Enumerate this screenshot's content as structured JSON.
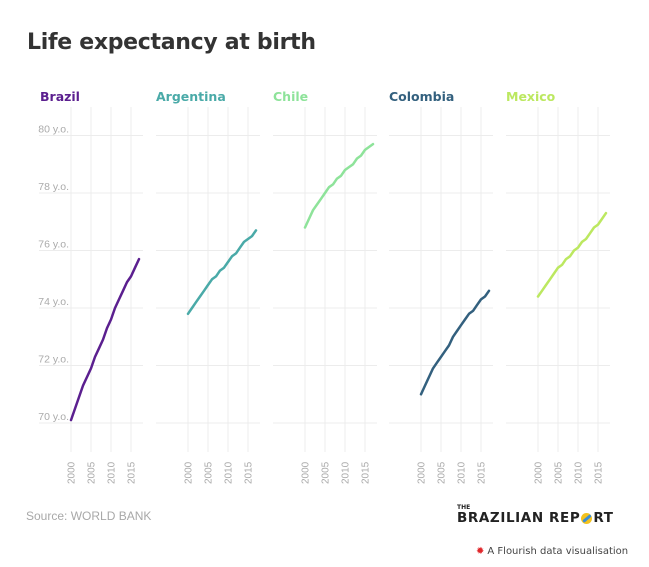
{
  "title": "Life expectancy at birth",
  "source": "Source: WORLD BANK",
  "brand": {
    "the": "THE",
    "name_before": "BRAZILIAN REP",
    "name_after": "RT",
    "logo_icon": "globe-icon"
  },
  "flourish": {
    "icon": "flourish-burst-icon",
    "text": "A Flourish data visualisation"
  },
  "chart_data": {
    "type": "line",
    "layout": "small-multiples",
    "title": "Life expectancy at birth",
    "xlabel": "",
    "ylabel": "",
    "x": [
      2000,
      2001,
      2002,
      2003,
      2004,
      2005,
      2006,
      2007,
      2008,
      2009,
      2010,
      2011,
      2012,
      2013,
      2014,
      2015,
      2016,
      2017
    ],
    "x_ticks": [
      "2000",
      "2005",
      "2010",
      "2015"
    ],
    "y_ticks": [
      "70 y.o.",
      "72 y.o.",
      "74 y.o.",
      "76 y.o.",
      "78 y.o.",
      "80 y.o."
    ],
    "y_tick_values": [
      70,
      72,
      74,
      76,
      78,
      80
    ],
    "ylim": [
      69,
      81
    ],
    "xlim": [
      2000,
      2017
    ],
    "grid": true,
    "series": [
      {
        "name": "Brazil",
        "color": "#5b1f8f",
        "values": [
          70.1,
          70.5,
          70.9,
          71.3,
          71.6,
          71.9,
          72.3,
          72.6,
          72.9,
          73.3,
          73.6,
          74.0,
          74.3,
          74.6,
          74.9,
          75.1,
          75.4,
          75.7
        ]
      },
      {
        "name": "Argentina",
        "color": "#4aaaa8",
        "values": [
          73.8,
          74.0,
          74.2,
          74.4,
          74.6,
          74.8,
          75.0,
          75.1,
          75.3,
          75.4,
          75.6,
          75.8,
          75.9,
          76.1,
          76.3,
          76.4,
          76.5,
          76.7
        ]
      },
      {
        "name": "Chile",
        "color": "#8ee39a",
        "values": [
          76.8,
          77.1,
          77.4,
          77.6,
          77.8,
          78.0,
          78.2,
          78.3,
          78.5,
          78.6,
          78.8,
          78.9,
          79.0,
          79.2,
          79.3,
          79.5,
          79.6,
          79.7
        ]
      },
      {
        "name": "Colombia",
        "color": "#33607e",
        "values": [
          71.0,
          71.3,
          71.6,
          71.9,
          72.1,
          72.3,
          72.5,
          72.7,
          73.0,
          73.2,
          73.4,
          73.6,
          73.8,
          73.9,
          74.1,
          74.3,
          74.4,
          74.6
        ]
      },
      {
        "name": "Mexico",
        "color": "#bce860",
        "values": [
          74.4,
          74.6,
          74.8,
          75.0,
          75.2,
          75.4,
          75.5,
          75.7,
          75.8,
          76.0,
          76.1,
          76.3,
          76.4,
          76.6,
          76.8,
          76.9,
          77.1,
          77.3
        ]
      }
    ]
  }
}
